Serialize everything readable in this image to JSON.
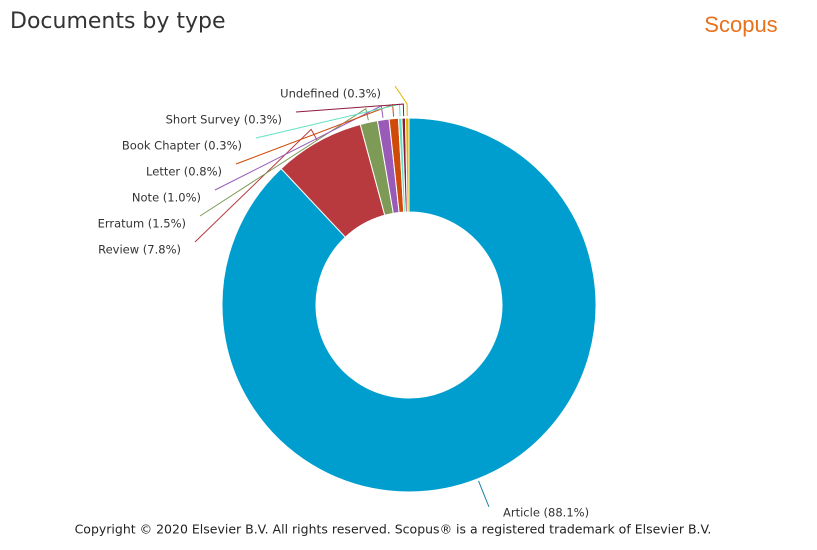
{
  "title": "Documents by type",
  "brand": "Scopus",
  "footer": "Copyright © 2020 Elsevier B.V. All rights reserved. Scopus® is a registered trademark of Elsevier B.V.",
  "chart_data": {
    "type": "donut",
    "values": [
      88.1,
      7.8,
      1.5,
      1.0,
      0.8,
      0.3,
      0.3,
      0.3
    ],
    "value_labels": [
      "Article (88.1%)",
      "Review (7.8%)",
      "Erratum (1.5%)",
      "Note (1.0%)",
      "Letter (0.8%)",
      "Book Chapter (0.3%)",
      "Short Survey (0.3%)",
      "Undefined (0.3%)"
    ],
    "colors": [
      "#009ecf",
      "#b8393e",
      "#7d9b57",
      "#9a5bb8",
      "#d04a0a",
      "#5fe3c4",
      "#8c1a3c",
      "#e0b400"
    ]
  }
}
